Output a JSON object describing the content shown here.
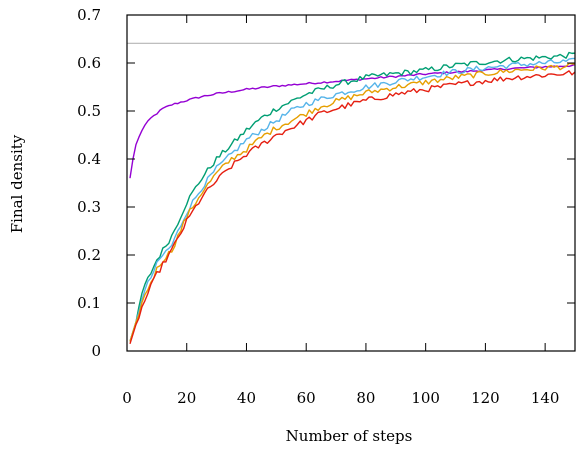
{
  "chart_data": {
    "type": "line",
    "title": "",
    "xlabel": "Number of steps",
    "ylabel": "Final density",
    "xlim": [
      0,
      150
    ],
    "ylim": [
      0,
      0.7
    ],
    "xticks": [
      0,
      20,
      40,
      60,
      80,
      100,
      120,
      140
    ],
    "yticks": [
      0,
      0.1,
      0.2,
      0.3,
      0.4,
      0.5,
      0.6,
      0.7
    ],
    "xtick_labels": [
      "0",
      "20",
      "40",
      "60",
      "80",
      "100",
      "120",
      "140"
    ],
    "ytick_labels": [
      "0",
      "0.1",
      "0.2",
      "0.3",
      "0.4",
      "0.5",
      "0.6",
      "0.7"
    ],
    "grid": false,
    "legend": "none",
    "reference_line": {
      "y": 0.641,
      "color": "#b4b4b4"
    },
    "series": [
      {
        "color": "#9400d3",
        "x": [
          1,
          2,
          3,
          4,
          5,
          6,
          8,
          10,
          12,
          15,
          20,
          25,
          30,
          40,
          50,
          60,
          70,
          80,
          90,
          100,
          110,
          120,
          130,
          140,
          150
        ],
        "y": [
          0.36,
          0.4,
          0.43,
          0.445,
          0.46,
          0.47,
          0.485,
          0.495,
          0.505,
          0.513,
          0.522,
          0.53,
          0.536,
          0.545,
          0.552,
          0.557,
          0.562,
          0.567,
          0.572,
          0.577,
          0.581,
          0.585,
          0.589,
          0.592,
          0.595
        ]
      },
      {
        "color": "#009e73",
        "x": [
          1,
          2,
          3,
          5,
          7,
          10,
          12,
          15,
          20,
          25,
          30,
          35,
          40,
          45,
          50,
          55,
          60,
          65,
          70,
          80,
          90,
          100,
          110,
          120,
          130,
          140,
          150
        ],
        "y": [
          0.02,
          0.04,
          0.06,
          0.12,
          0.15,
          0.19,
          0.21,
          0.24,
          0.31,
          0.36,
          0.4,
          0.43,
          0.46,
          0.485,
          0.505,
          0.52,
          0.535,
          0.545,
          0.555,
          0.57,
          0.578,
          0.585,
          0.595,
          0.602,
          0.608,
          0.612,
          0.617
        ]
      },
      {
        "color": "#56b4e9",
        "x": [
          1,
          2,
          3,
          5,
          7,
          10,
          12,
          15,
          20,
          25,
          30,
          35,
          40,
          45,
          50,
          55,
          60,
          65,
          70,
          80,
          90,
          100,
          110,
          120,
          130,
          140,
          150
        ],
        "y": [
          0.02,
          0.04,
          0.06,
          0.11,
          0.14,
          0.18,
          0.2,
          0.22,
          0.29,
          0.34,
          0.38,
          0.41,
          0.44,
          0.46,
          0.48,
          0.5,
          0.515,
          0.525,
          0.535,
          0.55,
          0.562,
          0.572,
          0.582,
          0.59,
          0.596,
          0.6,
          0.604
        ]
      },
      {
        "color": "#e69f00",
        "x": [
          1,
          2,
          3,
          5,
          7,
          10,
          12,
          15,
          20,
          25,
          30,
          35,
          40,
          45,
          50,
          55,
          60,
          65,
          70,
          80,
          90,
          100,
          110,
          120,
          130,
          140,
          150
        ],
        "y": [
          0.02,
          0.04,
          0.06,
          0.1,
          0.13,
          0.17,
          0.19,
          0.21,
          0.28,
          0.33,
          0.37,
          0.4,
          0.42,
          0.445,
          0.465,
          0.48,
          0.495,
          0.51,
          0.52,
          0.538,
          0.55,
          0.56,
          0.57,
          0.578,
          0.585,
          0.59,
          0.594
        ]
      },
      {
        "color": "#e51e10",
        "x": [
          1,
          2,
          3,
          5,
          7,
          10,
          12,
          15,
          20,
          25,
          30,
          35,
          40,
          45,
          50,
          55,
          60,
          65,
          70,
          80,
          90,
          100,
          110,
          120,
          130,
          140,
          150
        ],
        "y": [
          0.015,
          0.035,
          0.055,
          0.09,
          0.12,
          0.16,
          0.18,
          0.21,
          0.27,
          0.32,
          0.355,
          0.385,
          0.41,
          0.43,
          0.45,
          0.465,
          0.48,
          0.495,
          0.505,
          0.522,
          0.535,
          0.545,
          0.555,
          0.563,
          0.57,
          0.575,
          0.58
        ]
      }
    ]
  }
}
